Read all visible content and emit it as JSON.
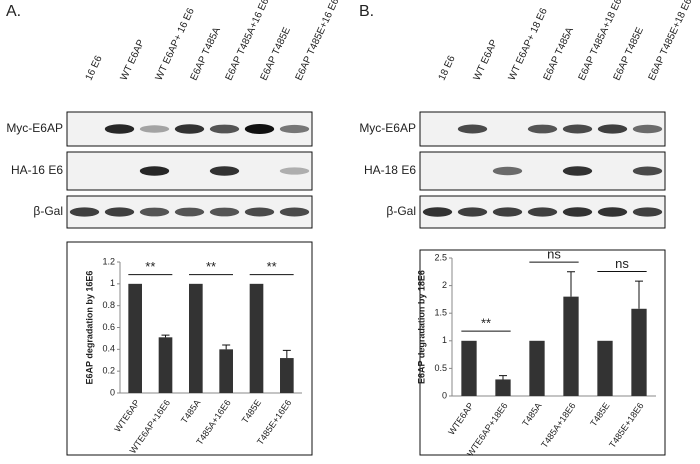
{
  "panels": [
    {
      "label": "A.",
      "lanes": [
        "16 E6",
        "WT E6AP",
        "WT E6AP+ 16 E6",
        "E6AP T485A",
        "E6AP T485A+16 E6",
        "E6AP T485E",
        "E6AP T485E+16 E6"
      ],
      "blots": [
        "Myc-E6AP",
        "HA-16 E6",
        "β-Gal"
      ]
    },
    {
      "label": "B.",
      "lanes": [
        "18 E6",
        "WT E6AP",
        "WT E6AP+ 18 E6",
        "E6AP T485A",
        "E6AP T485A+18 E6",
        "E6AP T485E",
        "E6AP T485E+18 E6"
      ],
      "blots": [
        "Myc-E6AP",
        "HA-18 E6",
        "β-Gal"
      ]
    }
  ],
  "chart_data": [
    {
      "type": "bar",
      "y_label": "E6AP degradation by 16E6",
      "categories": [
        "WTE6AP",
        "WTE6AP+16E6",
        "T485A",
        "T485A+16E6",
        "T485E",
        "T485E+16E6"
      ],
      "values": [
        1,
        0.51,
        1,
        0.4,
        1,
        0.32
      ],
      "errors": [
        0,
        0.02,
        0,
        0.04,
        0,
        0.07
      ],
      "color": "#333333",
      "ylim": [
        0,
        1.2
      ],
      "yticks": [
        0,
        0.2,
        0.4,
        0.6,
        0.8,
        1,
        1.2
      ],
      "annotations": [
        "**",
        "**",
        "**"
      ]
    },
    {
      "type": "bar",
      "y_label": "E6AP degradation by 18E6",
      "categories": [
        "WTE6AP",
        "WTE6AP+18E6",
        "T485A",
        "T485A+18E6",
        "T485E",
        "T485E+18E6"
      ],
      "values": [
        1,
        0.3,
        1,
        1.8,
        1,
        1.58
      ],
      "errors": [
        0,
        0.07,
        0,
        0.45,
        0,
        0.5
      ],
      "color": "#333333",
      "ylim": [
        0,
        2.5
      ],
      "yticks": [
        0,
        0.5,
        1,
        1.5,
        2,
        2.5
      ],
      "annotations": [
        "**",
        "ns",
        "ns"
      ]
    }
  ]
}
